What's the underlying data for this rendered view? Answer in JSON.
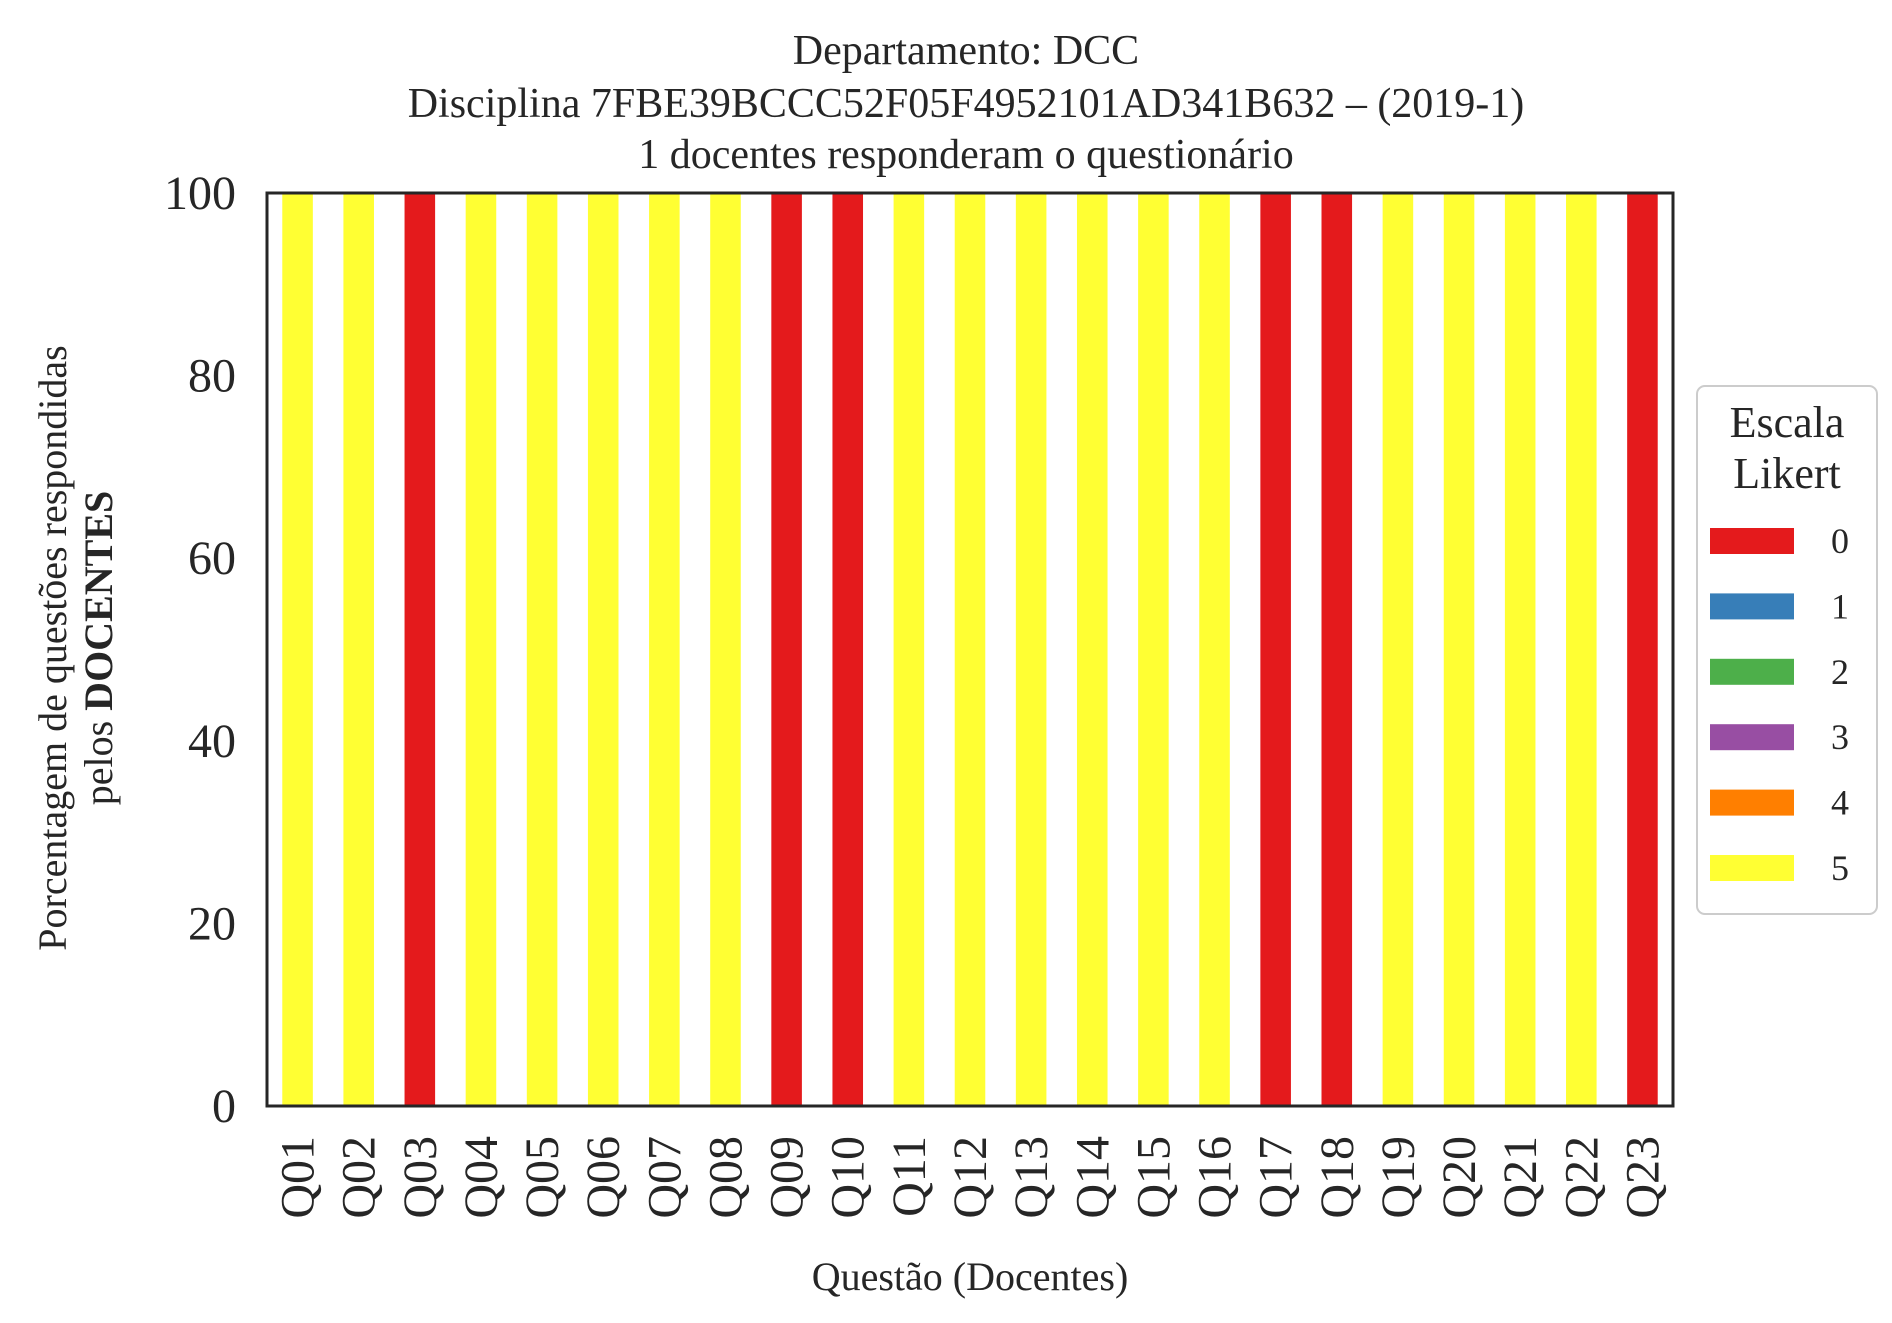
{
  "chart_data": {
    "type": "bar",
    "stacked": true,
    "title_lines": [
      "Departamento: DCC",
      "Disciplina 7FBE39BCCC52F05F4952101AD341B632 – (2019-1)",
      "1 docentes responderam o questionário"
    ],
    "xlabel": "Questão (Docentes)",
    "ylabel_line1": "Porcentagem de questões respondidas",
    "ylabel_line2_prefix": "pelos ",
    "ylabel_line2_bold": "DOCENTES",
    "ylim": [
      0,
      100
    ],
    "yticks": [
      "0",
      "20",
      "40",
      "60",
      "80",
      "100"
    ],
    "categories": [
      "Q01",
      "Q02",
      "Q03",
      "Q04",
      "Q05",
      "Q06",
      "Q07",
      "Q08",
      "Q09",
      "Q10",
      "Q11",
      "Q12",
      "Q13",
      "Q14",
      "Q15",
      "Q16",
      "Q17",
      "Q18",
      "Q19",
      "Q20",
      "Q21",
      "Q22",
      "Q23"
    ],
    "legend_title_lines": [
      "Escala",
      "Likert"
    ],
    "legend_position": "right",
    "series": [
      {
        "name": "0",
        "color": "#e41a1c",
        "values": [
          0,
          0,
          100,
          0,
          0,
          0,
          0,
          0,
          100,
          100,
          0,
          0,
          0,
          0,
          0,
          0,
          100,
          100,
          0,
          0,
          0,
          0,
          100
        ]
      },
      {
        "name": "1",
        "color": "#377eb8",
        "values": [
          0,
          0,
          0,
          0,
          0,
          0,
          0,
          0,
          0,
          0,
          0,
          0,
          0,
          0,
          0,
          0,
          0,
          0,
          0,
          0,
          0,
          0,
          0
        ]
      },
      {
        "name": "2",
        "color": "#4daf4a",
        "values": [
          0,
          0,
          0,
          0,
          0,
          0,
          0,
          0,
          0,
          0,
          0,
          0,
          0,
          0,
          0,
          0,
          0,
          0,
          0,
          0,
          0,
          0,
          0
        ]
      },
      {
        "name": "3",
        "color": "#984ea3",
        "values": [
          0,
          0,
          0,
          0,
          0,
          0,
          0,
          0,
          0,
          0,
          0,
          0,
          0,
          0,
          0,
          0,
          0,
          0,
          0,
          0,
          0,
          0,
          0
        ]
      },
      {
        "name": "4",
        "color": "#ff7f00",
        "values": [
          0,
          0,
          0,
          0,
          0,
          0,
          0,
          0,
          0,
          0,
          0,
          0,
          0,
          0,
          0,
          0,
          0,
          0,
          0,
          0,
          0,
          0,
          0
        ]
      },
      {
        "name": "5",
        "color": "#ffff33",
        "values": [
          100,
          100,
          0,
          100,
          100,
          100,
          100,
          100,
          0,
          0,
          100,
          100,
          100,
          100,
          100,
          100,
          0,
          0,
          100,
          100,
          100,
          100,
          0
        ]
      }
    ]
  }
}
